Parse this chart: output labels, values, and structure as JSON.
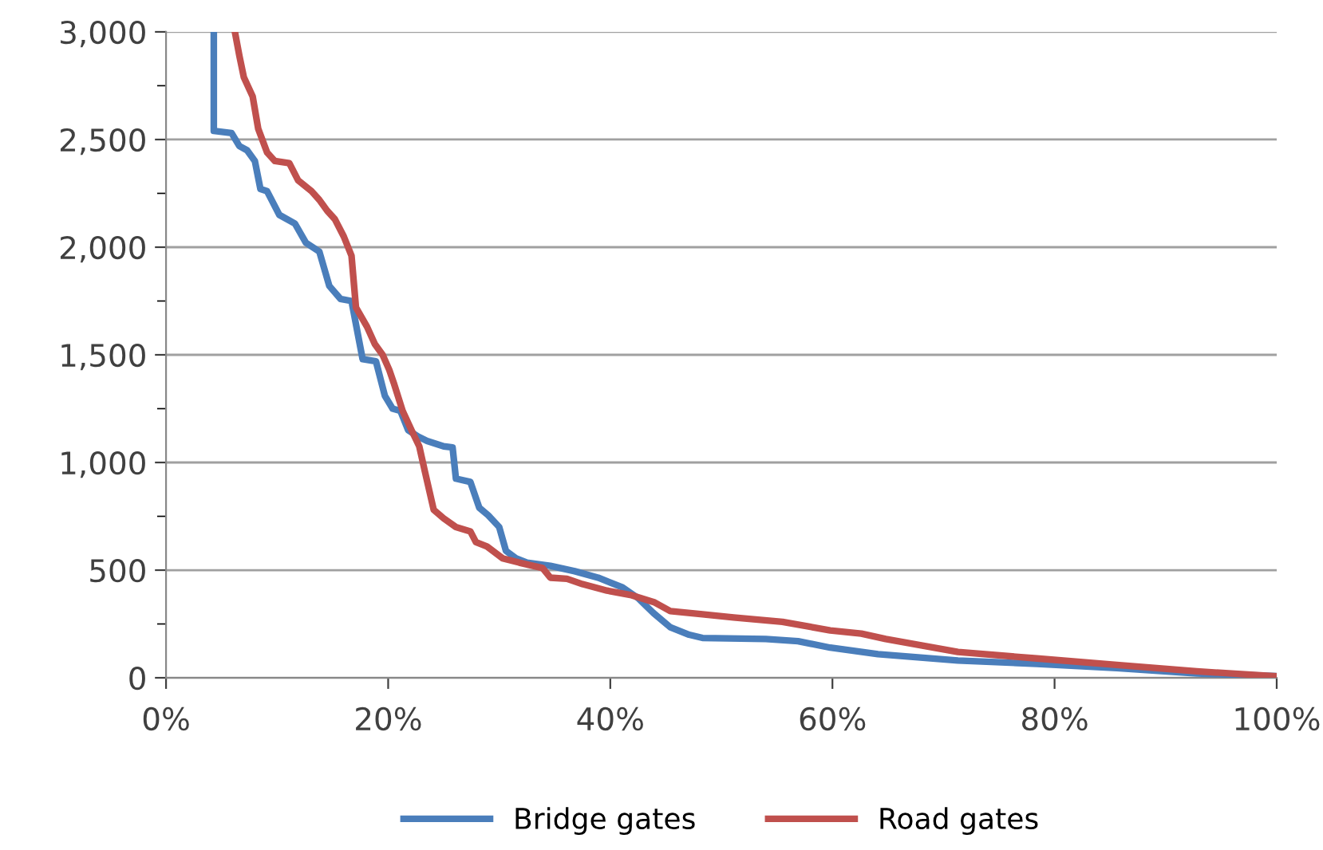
{
  "chart_data": {
    "type": "line",
    "xlim": [
      0,
      100
    ],
    "ylim": [
      0,
      3000
    ],
    "xticks": [
      {
        "value": 0,
        "label": "0%"
      },
      {
        "value": 20,
        "label": "20%"
      },
      {
        "value": 40,
        "label": "40%"
      },
      {
        "value": 60,
        "label": "60%"
      },
      {
        "value": 80,
        "label": "80%"
      },
      {
        "value": 100,
        "label": "100%"
      }
    ],
    "yticks": [
      {
        "value": 0,
        "label": "0"
      },
      {
        "value": 500,
        "label": "500"
      },
      {
        "value": 1000,
        "label": "1,000"
      },
      {
        "value": 1500,
        "label": "1,500"
      },
      {
        "value": 2000,
        "label": "2,000"
      },
      {
        "value": 2500,
        "label": "2,500"
      },
      {
        "value": 3000,
        "label": "3,000"
      }
    ],
    "grid": "y",
    "legend": "bottom",
    "marker": "none",
    "line_style": "solid",
    "series": [
      {
        "name": "Bridge gates",
        "color": "#4a7ebb",
        "x": [
          4.3,
          4.3,
          5.9,
          6.6,
          7.3,
          8.0,
          8.5,
          9.1,
          10.2,
          11.6,
          12.6,
          13.8,
          14.7,
          15.7,
          16.7,
          17.7,
          18.9,
          19.7,
          20.4,
          21.1,
          21.8,
          22.7,
          23.5,
          25.0,
          25.8,
          26.1,
          27.4,
          28.2,
          29.0,
          30.0,
          30.6,
          31.5,
          32.5,
          34.6,
          36.8,
          38.9,
          41.1,
          42.5,
          43.9,
          45.4,
          47.1,
          48.3,
          54.0,
          56.9,
          59.8,
          64.1,
          71.3,
          78.4,
          85.6,
          92.8,
          99.7
        ],
        "values": [
          3000,
          2540,
          2530,
          2470,
          2450,
          2400,
          2270,
          2260,
          2150,
          2110,
          2020,
          1980,
          1820,
          1760,
          1750,
          1480,
          1470,
          1310,
          1250,
          1240,
          1150,
          1120,
          1100,
          1075,
          1070,
          925,
          910,
          790,
          755,
          700,
          590,
          555,
          535,
          520,
          495,
          465,
          420,
          370,
          300,
          235,
          200,
          185,
          180,
          170,
          140,
          110,
          80,
          65,
          45,
          20,
          8
        ]
      },
      {
        "name": "Road gates",
        "color": "#c0504d",
        "x": [
          6.2,
          6.6,
          7.0,
          7.8,
          8.3,
          9.1,
          9.8,
          11.1,
          11.9,
          13.1,
          13.8,
          14.5,
          15.2,
          16.0,
          16.7,
          17.1,
          18.1,
          18.8,
          19.5,
          20.1,
          20.5,
          21.3,
          22.1,
          22.8,
          23.3,
          24.1,
          25.0,
          26.1,
          27.4,
          27.9,
          28.9,
          30.3,
          31.8,
          33.9,
          34.6,
          36.1,
          37.5,
          39.7,
          41.8,
          44.0,
          45.4,
          48.3,
          51.1,
          55.5,
          59.8,
          62.6,
          64.8,
          71.3,
          78.4,
          85.6,
          92.8,
          99.7
        ],
        "values": [
          3000,
          2890,
          2790,
          2700,
          2550,
          2440,
          2400,
          2390,
          2310,
          2260,
          2220,
          2170,
          2130,
          2050,
          1960,
          1720,
          1630,
          1550,
          1500,
          1430,
          1370,
          1240,
          1150,
          1075,
          960,
          780,
          740,
          700,
          680,
          630,
          610,
          555,
          535,
          510,
          465,
          460,
          435,
          405,
          385,
          350,
          310,
          295,
          280,
          260,
          220,
          205,
          180,
          120,
          90,
          60,
          30,
          8
        ]
      }
    ]
  }
}
